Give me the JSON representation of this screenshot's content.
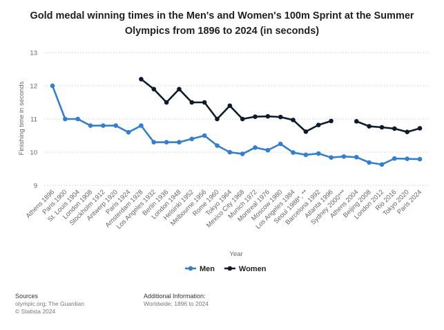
{
  "chart_data": {
    "type": "line",
    "title": "Gold medal winning times in the Men's and Women's 100m Sprint at the Summer Olympics from 1896 to 2024 (in seconds)",
    "xlabel": "Year",
    "ylabel": "Finishing time in seconds",
    "ylim": [
      9,
      13
    ],
    "yticks": [
      "9",
      "10",
      "11",
      "12",
      "13"
    ],
    "grid": true,
    "legend_position": "bottom-center",
    "categories": [
      "Athens 1896",
      "Paris 1900",
      "St. Louis 1904",
      "London 1908",
      "Stockholm 1912",
      "Antwerp 1920",
      "Paris 1924",
      "Amsterdam 1928",
      "Los Angeles 1932",
      "Berlin 1936",
      "London 1948",
      "Helsinki 1952",
      "Melbourne 1956",
      "Rome 1960",
      "Tokyo 1964",
      "Mexico City 1968",
      "Munich 1972",
      "Montreal 1976",
      "Moscow 1980",
      "Los Angeles 1984",
      "Seoul 1988*, **",
      "Barcelona 1992",
      "Atlanta 1996",
      "Sydney 2000***",
      "Athens 2004",
      "Beijing 2008",
      "London 2012",
      "Rio 2016",
      "Tokyo 2020",
      "Paris 2024"
    ],
    "series": [
      {
        "name": "Men",
        "color": "#2f7ed8",
        "values": [
          12.0,
          11.0,
          11.0,
          10.8,
          10.8,
          10.8,
          10.6,
          10.8,
          10.3,
          10.3,
          10.3,
          10.4,
          10.5,
          10.2,
          10.0,
          9.95,
          10.14,
          10.06,
          10.25,
          9.99,
          9.92,
          9.96,
          9.84,
          9.87,
          9.85,
          9.69,
          9.63,
          9.81,
          9.8,
          9.79
        ]
      },
      {
        "name": "Women",
        "color": "#0d1b2e",
        "values": [
          null,
          null,
          null,
          null,
          null,
          null,
          null,
          12.2,
          11.9,
          11.5,
          11.9,
          11.5,
          11.5,
          11.0,
          11.4,
          11.0,
          11.07,
          11.08,
          11.06,
          10.97,
          10.62,
          10.82,
          10.94,
          null,
          10.93,
          10.78,
          10.75,
          10.71,
          10.61,
          10.72
        ]
      }
    ]
  },
  "footer": {
    "sources_heading": "Sources",
    "sources_line1": "olympic.org; The Guardian",
    "sources_line2": "© Statista 2024",
    "info_heading": "Additional Information:",
    "info_line1": "Worldwide; 1896 to 2024"
  }
}
